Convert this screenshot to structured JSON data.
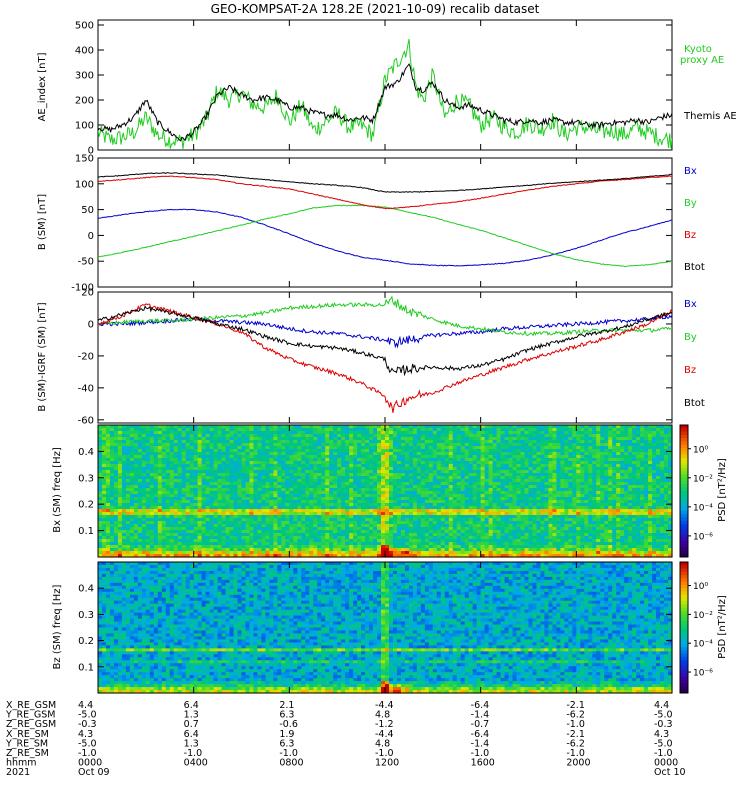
{
  "title": "GEO-KOMPSAT-2A 128.2E (2021-10-09) recalib dataset",
  "colors": {
    "black": "#000000",
    "blue": "#0000cc",
    "green": "#22cc22",
    "red": "#dd0000"
  },
  "time_axis": {
    "range_hours": [
      0,
      24
    ],
    "ticks_hhmm": [
      "0000",
      "0400",
      "0800",
      "1200",
      "1600",
      "2000",
      "0000"
    ],
    "ticks_date": [
      "Oct 09",
      "",
      "",
      "",
      "",
      "",
      "Oct 10"
    ]
  },
  "ephemeris": {
    "rows": [
      {
        "label": "X_RE_GSM",
        "values": [
          "4.4",
          "6.4",
          "2.1",
          "-4.4",
          "-6.4",
          "-2.1",
          "4.4"
        ]
      },
      {
        "label": "Y_RE_GSM",
        "values": [
          "-5.0",
          "1.3",
          "6.3",
          "4.8",
          "-1.4",
          "-6.2",
          "-5.0"
        ]
      },
      {
        "label": "Z_RE_GSM",
        "values": [
          "-0.3",
          "0.7",
          "-0.6",
          "-1.2",
          "-0.7",
          "-1.0",
          "-0.3"
        ]
      },
      {
        "label": "X_RE_SM",
        "values": [
          "4.3",
          "6.4",
          "1.9",
          "-4.4",
          "-6.4",
          "-2.1",
          "4.3"
        ]
      },
      {
        "label": "Y_RE_SM",
        "values": [
          "-5.0",
          "1.3",
          "6.3",
          "4.8",
          "-1.4",
          "-6.2",
          "-5.0"
        ]
      },
      {
        "label": "Z_RE_SM",
        "values": [
          "-1.0",
          "-1.0",
          "-1.0",
          "-1.0",
          "-1.0",
          "-1.0",
          "-1.0"
        ]
      },
      {
        "label": "hhmm",
        "values": [
          "0000",
          "0400",
          "0800",
          "1200",
          "1600",
          "2000",
          "0000"
        ]
      },
      {
        "label": "2021",
        "values": [
          "Oct 09",
          "",
          "",
          "",
          "",
          "",
          "Oct 10"
        ]
      }
    ]
  },
  "chart_data": [
    {
      "type": "line",
      "ylabel": "AE_index [nT]",
      "ylim": [
        0,
        520
      ],
      "yticks": [
        "0",
        "100",
        "200",
        "300",
        "400",
        "500"
      ],
      "series": [
        {
          "name": "Kyoto proxy AE",
          "color": "#22cc22",
          "x": [
            0,
            0.5,
            1,
            1.5,
            2,
            2.5,
            3,
            3.5,
            4,
            4.5,
            5,
            5.5,
            6,
            6.5,
            7,
            7.5,
            8,
            8.5,
            9,
            9.5,
            10,
            10.5,
            11,
            11.5,
            12,
            12.5,
            13,
            13.3,
            13.6,
            14,
            14.5,
            15,
            15.5,
            16,
            16.5,
            17,
            17.5,
            18,
            18.5,
            19,
            19.5,
            20,
            20.5,
            21,
            21.5,
            22,
            22.5,
            23,
            23.5,
            24
          ],
          "y": [
            70,
            40,
            50,
            70,
            130,
            60,
            40,
            35,
            60,
            120,
            240,
            200,
            230,
            180,
            170,
            220,
            110,
            180,
            80,
            110,
            150,
            90,
            100,
            60,
            280,
            350,
            420,
            250,
            200,
            300,
            130,
            200,
            180,
            100,
            130,
            90,
            70,
            110,
            80,
            120,
            60,
            90,
            90,
            70,
            80,
            60,
            90,
            70,
            50,
            40
          ]
        },
        {
          "name": "Themis AE",
          "color": "#000000",
          "x": [
            0,
            0.5,
            1,
            1.5,
            2,
            2.5,
            3,
            3.5,
            4,
            4.5,
            5,
            5.5,
            6,
            6.5,
            7,
            7.5,
            8,
            8.5,
            9,
            9.5,
            10,
            10.5,
            11,
            11.5,
            12,
            12.5,
            13,
            13.3,
            13.6,
            14,
            14.5,
            15,
            15.5,
            16,
            16.5,
            17,
            17.5,
            18,
            18.5,
            19,
            19.5,
            20,
            20.5,
            21,
            21.5,
            22,
            22.5,
            23,
            23.5,
            24
          ],
          "y": [
            90,
            80,
            100,
            130,
            200,
            110,
            70,
            40,
            70,
            130,
            220,
            250,
            220,
            200,
            210,
            200,
            170,
            170,
            150,
            140,
            140,
            120,
            130,
            120,
            250,
            270,
            340,
            250,
            240,
            270,
            200,
            170,
            180,
            160,
            140,
            120,
            110,
            120,
            110,
            120,
            110,
            110,
            100,
            100,
            110,
            110,
            120,
            110,
            130,
            140
          ]
        }
      ]
    },
    {
      "type": "line",
      "ylabel": "B (SM) [nT]",
      "ylim": [
        -100,
        150
      ],
      "yticks": [
        "-100",
        "-50",
        "0",
        "50",
        "100",
        "150"
      ],
      "series": [
        {
          "name": "Bx",
          "color": "#0000cc",
          "x": [
            0,
            1,
            2,
            3,
            4,
            5,
            6,
            7,
            8,
            9,
            10,
            11,
            12,
            13,
            14,
            15,
            16,
            17,
            18,
            19,
            20,
            21,
            22,
            23,
            24
          ],
          "y": [
            33,
            40,
            46,
            50,
            50,
            45,
            35,
            20,
            3,
            -15,
            -30,
            -42,
            -48,
            -55,
            -58,
            -59,
            -57,
            -54,
            -48,
            -38,
            -25,
            -10,
            5,
            17,
            30
          ]
        },
        {
          "name": "By",
          "color": "#22cc22",
          "x": [
            0,
            1,
            2,
            3,
            4,
            5,
            6,
            7,
            8,
            9,
            10,
            11,
            12,
            13,
            14,
            15,
            16,
            17,
            18,
            19,
            20,
            21,
            22,
            23,
            24
          ],
          "y": [
            -42,
            -33,
            -23,
            -12,
            -2,
            9,
            20,
            32,
            42,
            53,
            58,
            58,
            55,
            45,
            35,
            22,
            10,
            -5,
            -20,
            -35,
            -47,
            -55,
            -60,
            -57,
            -50
          ]
        },
        {
          "name": "Bz",
          "color": "#dd0000",
          "x": [
            0,
            1,
            2,
            3,
            4,
            5,
            6,
            7,
            8,
            9,
            10,
            11,
            12,
            13,
            14,
            15,
            16,
            17,
            18,
            19,
            20,
            21,
            22,
            23,
            24
          ],
          "y": [
            105,
            108,
            112,
            115,
            112,
            108,
            100,
            95,
            90,
            80,
            70,
            60,
            52,
            55,
            60,
            65,
            72,
            80,
            88,
            95,
            100,
            105,
            108,
            112,
            115
          ]
        },
        {
          "name": "Btot",
          "color": "#000000",
          "x": [
            0,
            1,
            2,
            3,
            4,
            5,
            6,
            7,
            8,
            9,
            10,
            11,
            12,
            13,
            14,
            15,
            16,
            17,
            18,
            19,
            20,
            21,
            22,
            23,
            24
          ],
          "y": [
            113,
            116,
            120,
            121,
            119,
            117,
            112,
            108,
            104,
            100,
            97,
            93,
            84,
            84,
            85,
            87,
            90,
            94,
            97,
            101,
            104,
            107,
            110,
            114,
            118
          ]
        }
      ]
    },
    {
      "type": "line",
      "ylabel": "B (SM)-IGRF (SM) [nT]",
      "ylim": [
        -62,
        20
      ],
      "yticks": [
        "-60",
        "-40",
        "-20",
        "0",
        "20"
      ],
      "series": [
        {
          "name": "Bx",
          "color": "#0000cc",
          "x": [
            0,
            1,
            2,
            3,
            4,
            5,
            6,
            7,
            8,
            9,
            10,
            11,
            12,
            12.3,
            13,
            14,
            15,
            16,
            17,
            18,
            19,
            20,
            21,
            22,
            23,
            24
          ],
          "y": [
            0,
            0,
            1,
            2,
            3,
            2,
            1,
            0,
            -3,
            -5,
            -6,
            -8,
            -10,
            -12,
            -10,
            -7,
            -6,
            -5,
            -3,
            -2,
            -1,
            0,
            1,
            2,
            3,
            5
          ]
        },
        {
          "name": "By",
          "color": "#22cc22",
          "x": [
            0,
            1,
            2,
            3,
            4,
            5,
            6,
            7,
            8,
            9,
            10,
            11,
            12,
            12.3,
            13,
            14,
            15,
            16,
            17,
            18,
            19,
            20,
            21,
            22,
            23,
            24
          ],
          "y": [
            0,
            1,
            2,
            2,
            3,
            4,
            5,
            7,
            10,
            11,
            12,
            12,
            12,
            15,
            8,
            3,
            -1,
            -3,
            -5,
            -6,
            -6,
            -5,
            -4,
            -4,
            -4,
            -3
          ]
        },
        {
          "name": "Bz",
          "color": "#dd0000",
          "x": [
            0,
            1,
            2,
            3,
            4,
            5,
            6,
            7,
            8,
            9,
            10,
            11,
            12,
            12.3,
            13,
            14,
            15,
            16,
            17,
            18,
            19,
            20,
            21,
            22,
            23,
            24
          ],
          "y": [
            0,
            5,
            12,
            8,
            4,
            0,
            -5,
            -15,
            -22,
            -27,
            -31,
            -37,
            -45,
            -53,
            -46,
            -43,
            -37,
            -32,
            -27,
            -22,
            -18,
            -14,
            -10,
            -5,
            0,
            8
          ]
        },
        {
          "name": "Btot",
          "color": "#000000",
          "x": [
            0,
            1,
            2,
            3,
            4,
            5,
            6,
            7,
            8,
            9,
            10,
            11,
            12,
            12.3,
            13,
            14,
            15,
            16,
            17,
            18,
            19,
            20,
            21,
            22,
            23,
            24
          ],
          "y": [
            2,
            6,
            10,
            7,
            4,
            0,
            -3,
            -8,
            -12,
            -14,
            -15,
            -18,
            -22,
            -31,
            -28,
            -27,
            -28,
            -26,
            -22,
            -16,
            -12,
            -8,
            -5,
            -2,
            3,
            7
          ]
        }
      ]
    },
    {
      "type": "heatmap",
      "ylabel": "Bx (SM) freq [Hz]",
      "ylim": [
        0,
        0.5
      ],
      "yticks": [
        "0.1",
        "0.2",
        "0.3",
        "0.4"
      ],
      "colorbar": {
        "label": "PSD [nT²/Hz]",
        "ticks": [
          "10⁰",
          "10⁻²",
          "10⁻⁴",
          "10⁻⁶"
        ]
      },
      "features": {
        "band_freq_hz": 0.17,
        "burst_hour": 12.0
      }
    },
    {
      "type": "heatmap",
      "ylabel": "Bz (SM) freq [Hz]",
      "ylim": [
        0,
        0.5
      ],
      "yticks": [
        "0.1",
        "0.2",
        "0.3",
        "0.4"
      ],
      "colorbar": {
        "label": "PSD [nT²/Hz]",
        "ticks": [
          "10⁰",
          "10⁻²",
          "10⁻⁴",
          "10⁻⁶"
        ]
      },
      "features": {
        "band_freq_hz": 0.165,
        "burst_hour": 12.0
      }
    }
  ],
  "legends": [
    {
      "panel": 0,
      "items": [
        {
          "text": "Kyoto",
          "color": "#22cc22"
        },
        {
          "text": "proxy AE",
          "color": "#22cc22"
        },
        {
          "text": "Themis AE",
          "color": "#000000"
        }
      ]
    },
    {
      "panel": 1,
      "items": [
        {
          "text": "Bx",
          "color": "#0000cc"
        },
        {
          "text": "By",
          "color": "#22cc22"
        },
        {
          "text": "Bz",
          "color": "#dd0000"
        },
        {
          "text": "Btot",
          "color": "#000000"
        }
      ]
    },
    {
      "panel": 2,
      "items": [
        {
          "text": "Bx",
          "color": "#0000cc"
        },
        {
          "text": "By",
          "color": "#22cc22"
        },
        {
          "text": "Bz",
          "color": "#dd0000"
        },
        {
          "text": "Btot",
          "color": "#000000"
        }
      ]
    }
  ]
}
